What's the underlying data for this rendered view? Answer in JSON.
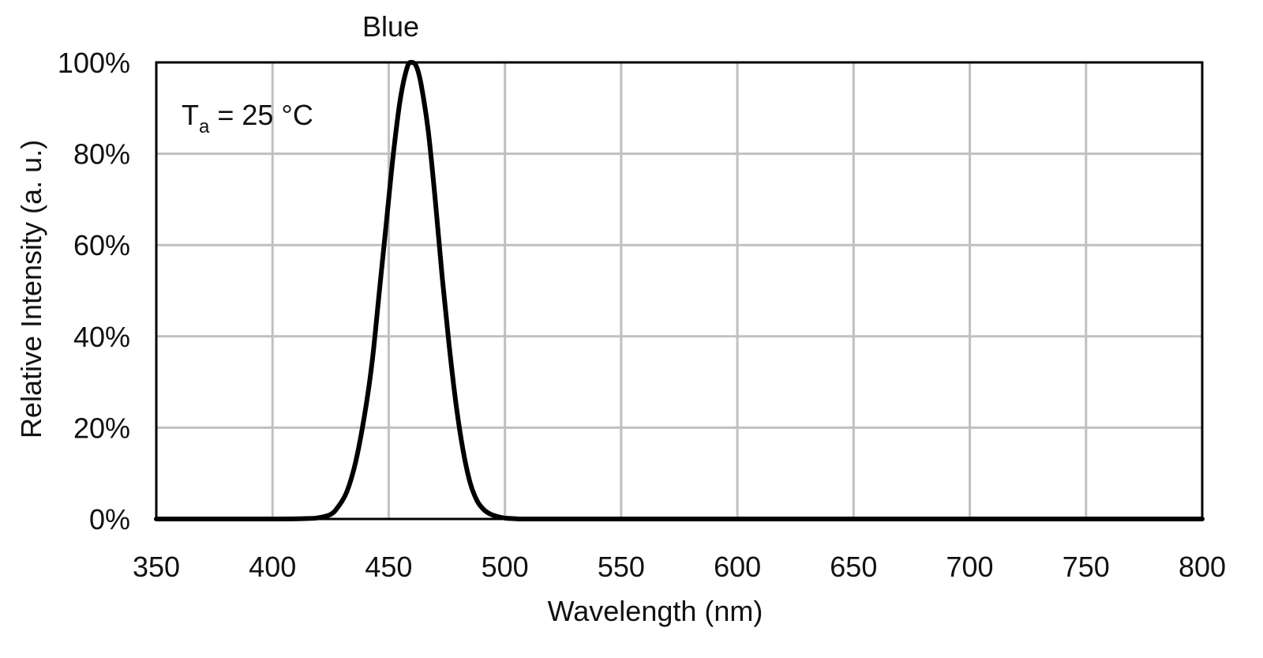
{
  "chart_data": {
    "type": "line",
    "title": "Blue",
    "xlabel": "Wavelength (nm)",
    "ylabel": "Relative Intensity (a. u.)",
    "xlim": [
      350,
      800
    ],
    "ylim": [
      0,
      100
    ],
    "x_ticks": [
      "350",
      "400",
      "450",
      "500",
      "550",
      "600",
      "650",
      "700",
      "750",
      "800"
    ],
    "y_ticks": [
      "0%",
      "20%",
      "40%",
      "60%",
      "80%",
      "100%"
    ],
    "grid": true,
    "annotation": {
      "main": "T",
      "sub": "a",
      "rest": " = 25 °C"
    },
    "line_color": "#000000",
    "grid_color": "#c0c0c0",
    "series": [
      {
        "name": "Blue",
        "x": [
          350,
          400,
          415,
          420,
          425,
          428,
          432,
          436,
          440,
          443,
          446,
          449,
          452,
          455,
          458,
          460,
          462,
          464,
          467,
          470,
          473,
          476,
          479,
          482,
          485,
          488,
          491,
          494,
          497,
          500,
          505,
          510,
          550,
          800
        ],
        "y": [
          0,
          0,
          0.1,
          0.3,
          1,
          2.5,
          6,
          13,
          24,
          35,
          50,
          65,
          80,
          92,
          99,
          100,
          99,
          95,
          85,
          70,
          53,
          38,
          25,
          15,
          8,
          4,
          2,
          1,
          0.5,
          0.2,
          0.05,
          0,
          0,
          0
        ]
      }
    ]
  }
}
